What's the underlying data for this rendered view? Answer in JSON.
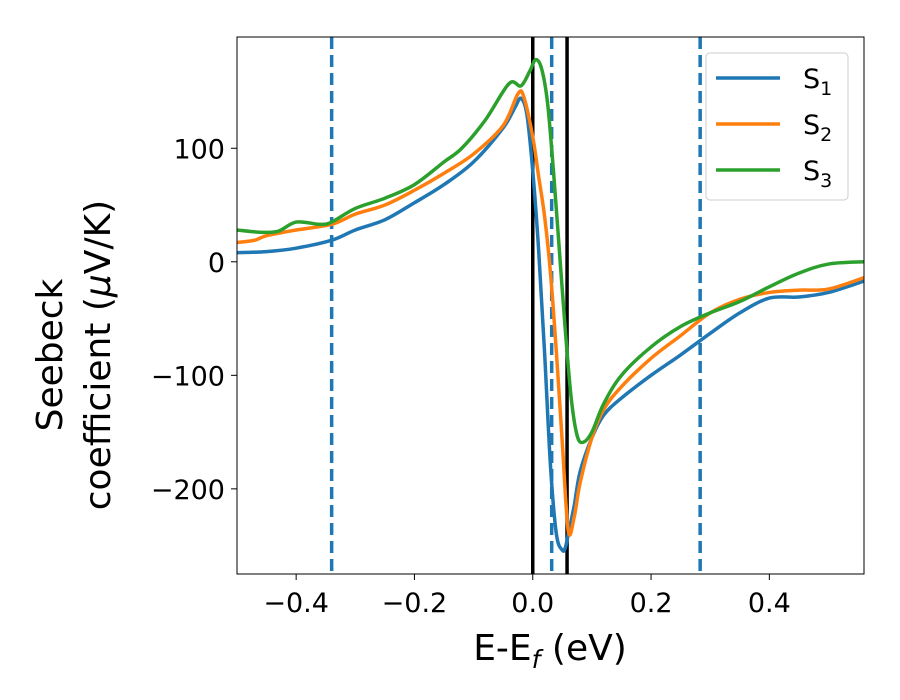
{
  "chart_data": {
    "type": "line",
    "xlabel": "E-E",
    "xlabel_sub": "f",
    "xlabel_unit": " (eV)",
    "ylabel_line1": "Seebeck",
    "ylabel_line2": "coefficient  (",
    "ylabel_mu": "μ",
    "ylabel_unit": "V/K)",
    "xlim": [
      -0.5,
      0.56
    ],
    "ylim": [
      -275,
      198
    ],
    "xticks": [
      -0.4,
      -0.2,
      0.0,
      0.2,
      0.4
    ],
    "xtick_labels": [
      "−0.4",
      "−0.2",
      "0.0",
      "0.2",
      "0.4"
    ],
    "yticks": [
      -200,
      -100,
      0,
      100
    ],
    "ytick_labels": [
      "−200",
      "−100",
      "0",
      "100"
    ],
    "grid": false,
    "legend_position": "top-right",
    "vlines": [
      {
        "x": 0.0,
        "style": "solid",
        "color": "#000000"
      },
      {
        "x": 0.058,
        "style": "solid",
        "color": "#000000"
      },
      {
        "x": -0.34,
        "style": "dashed",
        "color": "#1f77b4"
      },
      {
        "x": 0.032,
        "style": "dashed",
        "color": "#1f77b4"
      },
      {
        "x": 0.283,
        "style": "dashed",
        "color": "#1f77b4"
      }
    ],
    "series": [
      {
        "name": "S",
        "sub": "1",
        "color": "#1f77b4",
        "points": [
          [
            -0.5,
            8
          ],
          [
            -0.45,
            9
          ],
          [
            -0.4,
            12
          ],
          [
            -0.34,
            19
          ],
          [
            -0.3,
            28
          ],
          [
            -0.25,
            37
          ],
          [
            -0.2,
            52
          ],
          [
            -0.15,
            68
          ],
          [
            -0.1,
            88
          ],
          [
            -0.05,
            118
          ],
          [
            -0.03,
            136
          ],
          [
            -0.02,
            144
          ],
          [
            -0.01,
            130
          ],
          [
            0.0,
            80
          ],
          [
            0.01,
            10
          ],
          [
            0.02,
            -80
          ],
          [
            0.03,
            -180
          ],
          [
            0.04,
            -240
          ],
          [
            0.05,
            -254
          ],
          [
            0.055,
            -252
          ],
          [
            0.06,
            -240
          ],
          [
            0.07,
            -215
          ],
          [
            0.08,
            -185
          ],
          [
            0.1,
            -155
          ],
          [
            0.12,
            -135
          ],
          [
            0.15,
            -120
          ],
          [
            0.2,
            -100
          ],
          [
            0.25,
            -82
          ],
          [
            0.3,
            -63
          ],
          [
            0.35,
            -45
          ],
          [
            0.4,
            -32
          ],
          [
            0.45,
            -31
          ],
          [
            0.5,
            -27
          ],
          [
            0.56,
            -17
          ]
        ]
      },
      {
        "name": "S",
        "sub": "2",
        "color": "#ff7f0e",
        "points": [
          [
            -0.5,
            17
          ],
          [
            -0.47,
            19
          ],
          [
            -0.45,
            23
          ],
          [
            -0.4,
            28
          ],
          [
            -0.34,
            33
          ],
          [
            -0.3,
            42
          ],
          [
            -0.25,
            50
          ],
          [
            -0.2,
            63
          ],
          [
            -0.15,
            78
          ],
          [
            -0.1,
            95
          ],
          [
            -0.05,
            120
          ],
          [
            -0.025,
            148
          ],
          [
            -0.015,
            145
          ],
          [
            0.0,
            110
          ],
          [
            0.01,
            75
          ],
          [
            0.02,
            40
          ],
          [
            0.03,
            -10
          ],
          [
            0.04,
            -80
          ],
          [
            0.05,
            -160
          ],
          [
            0.06,
            -237
          ],
          [
            0.07,
            -225
          ],
          [
            0.08,
            -195
          ],
          [
            0.1,
            -155
          ],
          [
            0.12,
            -130
          ],
          [
            0.15,
            -110
          ],
          [
            0.2,
            -85
          ],
          [
            0.25,
            -65
          ],
          [
            0.3,
            -45
          ],
          [
            0.35,
            -33
          ],
          [
            0.4,
            -27
          ],
          [
            0.45,
            -25
          ],
          [
            0.5,
            -24
          ],
          [
            0.56,
            -14
          ]
        ]
      },
      {
        "name": "S",
        "sub": "3",
        "color": "#2ca02c",
        "points": [
          [
            -0.5,
            28
          ],
          [
            -0.46,
            26
          ],
          [
            -0.43,
            27
          ],
          [
            -0.4,
            35
          ],
          [
            -0.36,
            33
          ],
          [
            -0.34,
            35
          ],
          [
            -0.3,
            47
          ],
          [
            -0.25,
            56
          ],
          [
            -0.2,
            68
          ],
          [
            -0.15,
            88
          ],
          [
            -0.12,
            100
          ],
          [
            -0.08,
            125
          ],
          [
            -0.04,
            157
          ],
          [
            -0.02,
            155
          ],
          [
            -0.005,
            168
          ],
          [
            0.005,
            178
          ],
          [
            0.015,
            170
          ],
          [
            0.025,
            140
          ],
          [
            0.035,
            80
          ],
          [
            0.045,
            10
          ],
          [
            0.055,
            -60
          ],
          [
            0.065,
            -120
          ],
          [
            0.075,
            -153
          ],
          [
            0.085,
            -159
          ],
          [
            0.1,
            -150
          ],
          [
            0.12,
            -125
          ],
          [
            0.15,
            -100
          ],
          [
            0.2,
            -75
          ],
          [
            0.25,
            -57
          ],
          [
            0.3,
            -45
          ],
          [
            0.35,
            -35
          ],
          [
            0.4,
            -22
          ],
          [
            0.45,
            -10
          ],
          [
            0.5,
            -2
          ],
          [
            0.56,
            0
          ]
        ]
      }
    ]
  }
}
